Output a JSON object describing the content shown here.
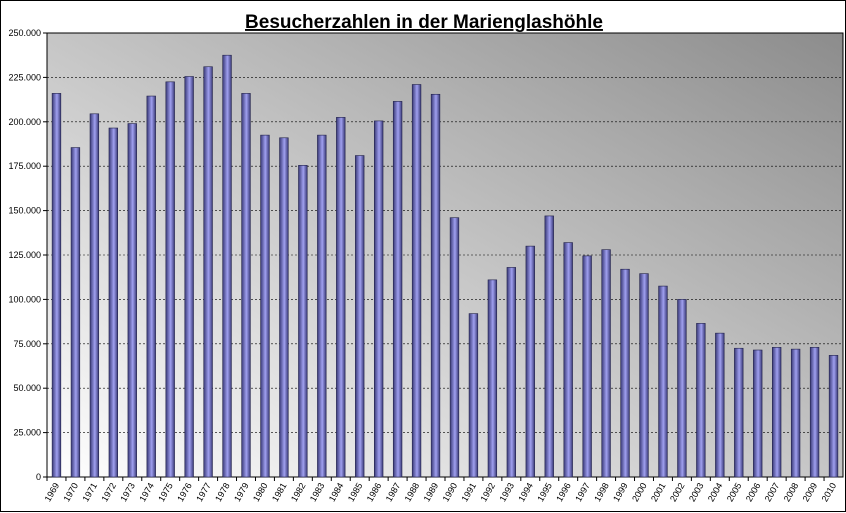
{
  "chart_data": {
    "type": "bar",
    "title": "Besucherzahlen in der Marienglashöhle",
    "xlabel": "",
    "ylabel": "",
    "ylim": [
      0,
      250000
    ],
    "yticks": [
      "0",
      "25.000",
      "50.000",
      "75.000",
      "100.000",
      "125.000",
      "150.000",
      "175.000",
      "200.000",
      "225.000",
      "250.000"
    ],
    "grid": true,
    "legend": "none",
    "categories": [
      "1969",
      "1970",
      "1971",
      "1972",
      "1973",
      "1974",
      "1975",
      "1976",
      "1977",
      "1978",
      "1979",
      "1980",
      "1981",
      "1982",
      "1983",
      "1984",
      "1985",
      "1986",
      "1987",
      "1988",
      "1989",
      "1990",
      "1991",
      "1992",
      "1993",
      "1994",
      "1995",
      "1996",
      "1997",
      "1998",
      "1999",
      "2000",
      "2001",
      "2002",
      "2003",
      "2004",
      "2005",
      "2006",
      "2007",
      "2008",
      "2009",
      "2010"
    ],
    "values": [
      216000,
      185500,
      204500,
      196500,
      199000,
      214500,
      222500,
      225500,
      231000,
      237500,
      216000,
      192500,
      191000,
      175500,
      192500,
      202500,
      181000,
      200500,
      211500,
      221000,
      215500,
      146000,
      92000,
      111000,
      118000,
      130000,
      147000,
      132000,
      124500,
      128000,
      117000,
      114500,
      107500,
      100000,
      86500,
      81000,
      72500,
      71500,
      73000,
      72000,
      73000,
      68500
    ],
    "colors": {
      "plot_bg_top": "#8c8c8c",
      "plot_bg_bottom": "#ffffff",
      "bar_dark": "#3a3a78",
      "bar_light": "#a0a0f0"
    }
  }
}
